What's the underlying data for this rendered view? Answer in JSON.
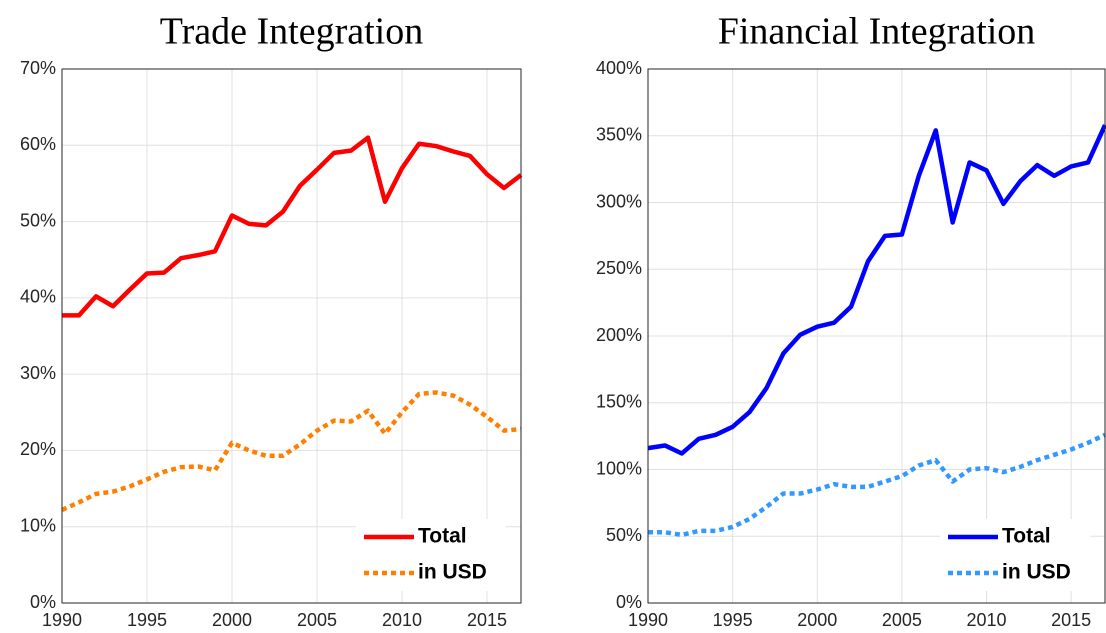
{
  "chart_data": [
    {
      "type": "line",
      "title": "Trade Integration",
      "x": [
        1990,
        1991,
        1992,
        1993,
        1994,
        1995,
        1996,
        1997,
        1998,
        1999,
        2000,
        2001,
        2002,
        2003,
        2004,
        2005,
        2006,
        2007,
        2008,
        2009,
        2010,
        2011,
        2012,
        2013,
        2014,
        2015,
        2016,
        2017
      ],
      "series": [
        {
          "name": "Total",
          "color": "#ff0000",
          "dash": "solid",
          "values": [
            37.7,
            37.7,
            40.2,
            38.9,
            41.1,
            43.2,
            43.3,
            45.2,
            45.6,
            46.1,
            50.8,
            49.7,
            49.5,
            51.3,
            54.7,
            56.8,
            59.0,
            59.3,
            61.0,
            52.6,
            57.0,
            60.2,
            59.9,
            59.2,
            58.6,
            56.2,
            54.4,
            56.1
          ]
        },
        {
          "name": "in USD",
          "color": "#ff8000",
          "dash": "dotted",
          "values": [
            12.2,
            13.2,
            14.3,
            14.6,
            15.3,
            16.2,
            17.2,
            17.8,
            17.9,
            17.4,
            21.0,
            20.0,
            19.3,
            19.3,
            20.8,
            22.6,
            23.9,
            23.8,
            25.2,
            22.2,
            25.0,
            27.4,
            27.6,
            27.2,
            26.0,
            24.4,
            22.6,
            22.8
          ]
        }
      ],
      "xlim": [
        1990,
        2017
      ],
      "xticks": [
        1990,
        1995,
        2000,
        2005,
        2010,
        2015
      ],
      "ylim": [
        0,
        70
      ],
      "yticks": [
        {
          "value": 0,
          "label": "0%"
        },
        {
          "value": 10,
          "label": "10%"
        },
        {
          "value": 20,
          "label": "20%"
        },
        {
          "value": 30,
          "label": "30%"
        },
        {
          "value": 40,
          "label": "40%"
        },
        {
          "value": 50,
          "label": "50%"
        },
        {
          "value": 60,
          "label": "60%"
        },
        {
          "value": 70,
          "label": "70%"
        }
      ],
      "grid": true,
      "legend": "lower-right"
    },
    {
      "type": "line",
      "title": "Financial Integration",
      "x": [
        1990,
        1991,
        1992,
        1993,
        1994,
        1995,
        1996,
        1997,
        1998,
        1999,
        2000,
        2001,
        2002,
        2003,
        2004,
        2005,
        2006,
        2007,
        2008,
        2009,
        2010,
        2011,
        2012,
        2013,
        2014,
        2015,
        2016,
        2017
      ],
      "series": [
        {
          "name": "Total",
          "color": "#0000ff",
          "dash": "solid",
          "values": [
            116,
            118,
            112,
            123,
            126,
            132,
            143,
            161,
            187,
            201,
            207,
            210,
            222,
            256,
            275,
            276,
            320,
            354,
            285,
            330,
            324,
            299,
            316,
            328,
            320,
            327,
            330,
            358
          ]
        },
        {
          "name": "in USD",
          "color": "#3399ff",
          "dash": "dotted",
          "values": [
            53,
            53,
            51,
            54,
            54,
            57,
            63,
            72,
            82,
            82,
            85,
            89,
            87,
            87,
            91,
            95,
            103,
            107,
            91,
            100,
            101,
            98,
            102,
            107,
            111,
            115,
            120,
            126
          ]
        }
      ],
      "xlim": [
        1990,
        2017
      ],
      "xticks": [
        1990,
        1995,
        2000,
        2005,
        2010,
        2015
      ],
      "ylim": [
        0,
        400
      ],
      "yticks": [
        {
          "value": 0,
          "label": "0%"
        },
        {
          "value": 50,
          "label": "50%"
        },
        {
          "value": 100,
          "label": "100%"
        },
        {
          "value": 150,
          "label": "150%"
        },
        {
          "value": 200,
          "label": "200%"
        },
        {
          "value": 250,
          "label": "250%"
        },
        {
          "value": 300,
          "label": "300%"
        },
        {
          "value": 350,
          "label": "350%"
        },
        {
          "value": 400,
          "label": "400%"
        }
      ],
      "grid": true,
      "legend": "lower-right"
    }
  ]
}
